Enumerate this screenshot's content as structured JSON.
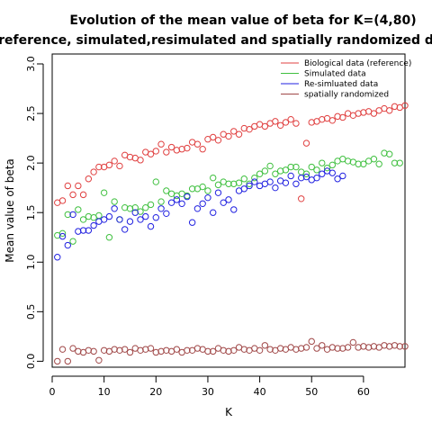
{
  "chart_data": {
    "type": "scatter",
    "title_line1": "Evolution of the mean value of beta for K=(4,80)",
    "title_line2": "in reference, simulated,resimulated and spatially randomized data",
    "xlabel": "K",
    "ylabel": "Mean value of beta",
    "xlim": [
      0,
      68
    ],
    "ylim": [
      -0.06,
      3.1
    ],
    "x_ticks": [
      0,
      10,
      20,
      30,
      40,
      50,
      60
    ],
    "y_ticks": [
      0.0,
      0.5,
      1.0,
      1.5,
      2.0,
      2.5,
      3.0
    ],
    "x_tick_labels": [
      "0",
      "10",
      "20",
      "30",
      "40",
      "50",
      "60"
    ],
    "y_tick_labels": [
      "0.0",
      "0.5",
      "1.0",
      "1.5",
      "2.0",
      "2.5",
      "3.0"
    ],
    "legend_position": "top-right",
    "series": [
      {
        "name": "Biological data (reference)",
        "color": "#e04040",
        "points": [
          [
            1,
            1.6
          ],
          [
            2,
            1.62
          ],
          [
            3,
            1.77
          ],
          [
            4,
            1.68
          ],
          [
            5,
            1.77
          ],
          [
            6,
            1.68
          ],
          [
            7,
            1.84
          ],
          [
            8,
            1.91
          ],
          [
            9,
            1.96
          ],
          [
            10,
            1.96
          ],
          [
            11,
            1.98
          ],
          [
            12,
            2.02
          ],
          [
            13,
            1.97
          ],
          [
            14,
            2.08
          ],
          [
            15,
            2.06
          ],
          [
            16,
            2.05
          ],
          [
            17,
            2.03
          ],
          [
            18,
            2.11
          ],
          [
            19,
            2.09
          ],
          [
            20,
            2.12
          ],
          [
            21,
            2.19
          ],
          [
            22,
            2.11
          ],
          [
            23,
            2.16
          ],
          [
            24,
            2.13
          ],
          [
            25,
            2.14
          ],
          [
            26,
            2.15
          ],
          [
            27,
            2.21
          ],
          [
            28,
            2.19
          ],
          [
            29,
            2.14
          ],
          [
            30,
            2.24
          ],
          [
            31,
            2.26
          ],
          [
            32,
            2.23
          ],
          [
            33,
            2.29
          ],
          [
            34,
            2.27
          ],
          [
            35,
            2.32
          ],
          [
            36,
            2.29
          ],
          [
            37,
            2.35
          ],
          [
            38,
            2.34
          ],
          [
            39,
            2.37
          ],
          [
            40,
            2.39
          ],
          [
            41,
            2.37
          ],
          [
            42,
            2.4
          ],
          [
            43,
            2.42
          ],
          [
            44,
            2.38
          ],
          [
            45,
            2.41
          ],
          [
            46,
            2.44
          ],
          [
            47,
            2.4
          ],
          [
            48,
            1.64
          ],
          [
            49,
            2.2
          ],
          [
            50,
            2.41
          ],
          [
            51,
            2.42
          ],
          [
            52,
            2.44
          ],
          [
            53,
            2.45
          ],
          [
            54,
            2.43
          ],
          [
            55,
            2.47
          ],
          [
            56,
            2.46
          ],
          [
            57,
            2.5
          ],
          [
            58,
            2.48
          ],
          [
            59,
            2.5
          ],
          [
            60,
            2.51
          ],
          [
            61,
            2.52
          ],
          [
            62,
            2.5
          ],
          [
            63,
            2.53
          ],
          [
            64,
            2.55
          ],
          [
            65,
            2.53
          ],
          [
            66,
            2.57
          ],
          [
            67,
            2.56
          ],
          [
            68,
            2.58
          ]
        ]
      },
      {
        "name": "Simulated data",
        "color": "#40c040",
        "points": [
          [
            1,
            1.27
          ],
          [
            2,
            1.29
          ],
          [
            3,
            1.48
          ],
          [
            4,
            1.21
          ],
          [
            5,
            1.53
          ],
          [
            6,
            1.43
          ],
          [
            7,
            1.46
          ],
          [
            8,
            1.45
          ],
          [
            9,
            1.47
          ],
          [
            10,
            1.7
          ],
          [
            11,
            1.25
          ],
          [
            12,
            1.61
          ],
          [
            13,
            1.43
          ],
          [
            14,
            1.55
          ],
          [
            15,
            1.54
          ],
          [
            16,
            1.55
          ],
          [
            17,
            1.51
          ],
          [
            18,
            1.55
          ],
          [
            19,
            1.58
          ],
          [
            20,
            1.81
          ],
          [
            21,
            1.61
          ],
          [
            22,
            1.72
          ],
          [
            23,
            1.69
          ],
          [
            24,
            1.67
          ],
          [
            25,
            1.69
          ],
          [
            26,
            1.67
          ],
          [
            27,
            1.74
          ],
          [
            28,
            1.74
          ],
          [
            29,
            1.76
          ],
          [
            30,
            1.72
          ],
          [
            31,
            1.85
          ],
          [
            32,
            1.78
          ],
          [
            33,
            1.81
          ],
          [
            34,
            1.79
          ],
          [
            35,
            1.79
          ],
          [
            36,
            1.8
          ],
          [
            37,
            1.84
          ],
          [
            38,
            1.79
          ],
          [
            39,
            1.85
          ],
          [
            40,
            1.89
          ],
          [
            41,
            1.92
          ],
          [
            42,
            1.97
          ],
          [
            43,
            1.89
          ],
          [
            44,
            1.92
          ],
          [
            45,
            1.93
          ],
          [
            46,
            1.96
          ],
          [
            47,
            1.96
          ],
          [
            48,
            1.91
          ],
          [
            49,
            1.89
          ],
          [
            50,
            1.96
          ],
          [
            51,
            1.93
          ],
          [
            52,
            2.0
          ],
          [
            53,
            1.95
          ],
          [
            54,
            1.98
          ],
          [
            55,
            2.02
          ],
          [
            56,
            2.04
          ],
          [
            57,
            2.02
          ],
          [
            58,
            2.01
          ],
          [
            59,
            1.99
          ],
          [
            60,
            1.99
          ],
          [
            61,
            2.02
          ],
          [
            62,
            2.04
          ],
          [
            63,
            1.99
          ],
          [
            64,
            2.1
          ],
          [
            65,
            2.09
          ],
          [
            66,
            2.0
          ],
          [
            67,
            2.0
          ]
        ]
      },
      {
        "name": "Re-simluated data",
        "color": "#2020e0",
        "points": [
          [
            1,
            1.05
          ],
          [
            2,
            1.26
          ],
          [
            3,
            1.17
          ],
          [
            4,
            1.48
          ],
          [
            5,
            1.31
          ],
          [
            6,
            1.32
          ],
          [
            7,
            1.32
          ],
          [
            8,
            1.37
          ],
          [
            9,
            1.41
          ],
          [
            10,
            1.43
          ],
          [
            11,
            1.46
          ],
          [
            12,
            1.54
          ],
          [
            13,
            1.43
          ],
          [
            14,
            1.33
          ],
          [
            15,
            1.41
          ],
          [
            16,
            1.5
          ],
          [
            17,
            1.43
          ],
          [
            18,
            1.46
          ],
          [
            19,
            1.36
          ],
          [
            20,
            1.45
          ],
          [
            21,
            1.54
          ],
          [
            22,
            1.49
          ],
          [
            23,
            1.6
          ],
          [
            24,
            1.63
          ],
          [
            25,
            1.59
          ],
          [
            26,
            1.66
          ],
          [
            27,
            1.4
          ],
          [
            28,
            1.54
          ],
          [
            29,
            1.59
          ],
          [
            30,
            1.65
          ],
          [
            31,
            1.5
          ],
          [
            32,
            1.7
          ],
          [
            33,
            1.6
          ],
          [
            34,
            1.63
          ],
          [
            35,
            1.53
          ],
          [
            36,
            1.72
          ],
          [
            37,
            1.74
          ],
          [
            38,
            1.77
          ],
          [
            39,
            1.81
          ],
          [
            40,
            1.77
          ],
          [
            41,
            1.79
          ],
          [
            42,
            1.81
          ],
          [
            43,
            1.75
          ],
          [
            44,
            1.82
          ],
          [
            45,
            1.8
          ],
          [
            46,
            1.87
          ],
          [
            47,
            1.79
          ],
          [
            48,
            1.85
          ],
          [
            49,
            1.86
          ],
          [
            50,
            1.83
          ],
          [
            51,
            1.85
          ],
          [
            52,
            1.89
          ],
          [
            53,
            1.92
          ],
          [
            54,
            1.9
          ],
          [
            55,
            1.84
          ],
          [
            56,
            1.87
          ]
        ]
      },
      {
        "name": "spatially randomized",
        "color": "#a04848",
        "points": [
          [
            1,
            0.0
          ],
          [
            2,
            0.12
          ],
          [
            3,
            0.0
          ],
          [
            4,
            0.13
          ],
          [
            5,
            0.1
          ],
          [
            6,
            0.09
          ],
          [
            7,
            0.11
          ],
          [
            8,
            0.1
          ],
          [
            9,
            0.01
          ],
          [
            10,
            0.11
          ],
          [
            11,
            0.1
          ],
          [
            12,
            0.12
          ],
          [
            13,
            0.11
          ],
          [
            14,
            0.12
          ],
          [
            15,
            0.09
          ],
          [
            16,
            0.13
          ],
          [
            17,
            0.11
          ],
          [
            18,
            0.12
          ],
          [
            19,
            0.13
          ],
          [
            20,
            0.09
          ],
          [
            21,
            0.1
          ],
          [
            22,
            0.11
          ],
          [
            23,
            0.1
          ],
          [
            24,
            0.12
          ],
          [
            25,
            0.09
          ],
          [
            26,
            0.11
          ],
          [
            27,
            0.11
          ],
          [
            28,
            0.13
          ],
          [
            29,
            0.12
          ],
          [
            30,
            0.1
          ],
          [
            31,
            0.1
          ],
          [
            32,
            0.13
          ],
          [
            33,
            0.11
          ],
          [
            34,
            0.1
          ],
          [
            35,
            0.11
          ],
          [
            36,
            0.14
          ],
          [
            37,
            0.12
          ],
          [
            38,
            0.11
          ],
          [
            39,
            0.13
          ],
          [
            40,
            0.11
          ],
          [
            41,
            0.16
          ],
          [
            42,
            0.12
          ],
          [
            43,
            0.11
          ],
          [
            44,
            0.13
          ],
          [
            45,
            0.12
          ],
          [
            46,
            0.14
          ],
          [
            47,
            0.12
          ],
          [
            48,
            0.13
          ],
          [
            49,
            0.14
          ],
          [
            50,
            0.2
          ],
          [
            51,
            0.13
          ],
          [
            52,
            0.16
          ],
          [
            53,
            0.12
          ],
          [
            54,
            0.14
          ],
          [
            55,
            0.13
          ],
          [
            56,
            0.13
          ],
          [
            57,
            0.14
          ],
          [
            58,
            0.19
          ],
          [
            59,
            0.14
          ],
          [
            60,
            0.15
          ],
          [
            61,
            0.14
          ],
          [
            62,
            0.15
          ],
          [
            63,
            0.14
          ],
          [
            64,
            0.16
          ],
          [
            65,
            0.15
          ],
          [
            66,
            0.16
          ],
          [
            67,
            0.15
          ],
          [
            68,
            0.15
          ]
        ]
      }
    ]
  }
}
